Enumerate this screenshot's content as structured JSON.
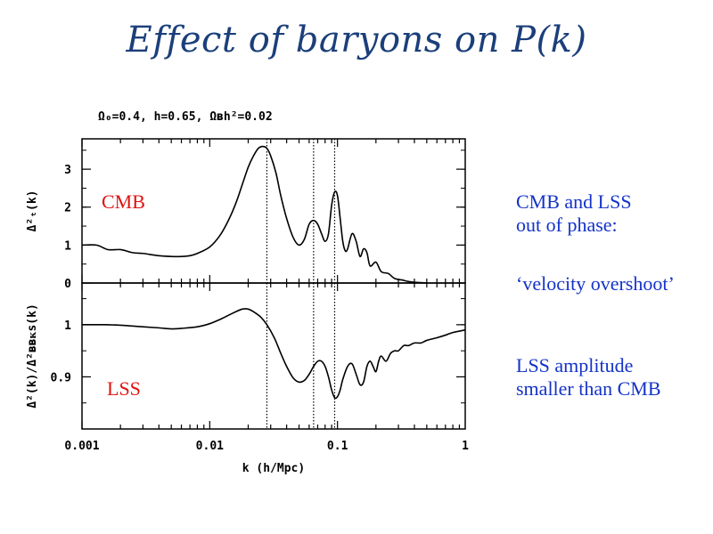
{
  "slide": {
    "title": "Effect of baryons on P(k)",
    "notes": [
      "CMB and LSS\nout of phase:",
      "‘velocity overshoot’",
      "LSS amplitude\nsmaller than CMB"
    ]
  },
  "chart_data": {
    "type": "line",
    "title": "Ω₀=0.4, h=0.65, Ωʙh²=0.02",
    "xlabel": "k (h/Mpc)",
    "x_scale": "log",
    "xlim": [
      0.001,
      1
    ],
    "x_ticks": [
      "0.001",
      "0.01",
      "0.1",
      "1"
    ],
    "vlines": [
      0.028,
      0.065,
      0.095
    ],
    "panels": [
      {
        "label": "CMB",
        "ylabel": "Δ²ₜ(k)",
        "ylim": [
          0,
          3.8
        ],
        "y_ticks": [
          "0",
          "1",
          "2",
          "3"
        ],
        "series": [
          {
            "x": [
              0.001,
              0.0013,
              0.0016,
              0.002,
              0.0025,
              0.003,
              0.004,
              0.005,
              0.006,
              0.007,
              0.008,
              0.01,
              0.012,
              0.014,
              0.016,
              0.018,
              0.02,
              0.022,
              0.024,
              0.026,
              0.028,
              0.03,
              0.033,
              0.036,
              0.04,
              0.045,
              0.05,
              0.055,
              0.06,
              0.065,
              0.07,
              0.075,
              0.08,
              0.085,
              0.09,
              0.095,
              0.1,
              0.105,
              0.11,
              0.115,
              0.12,
              0.13,
              0.14,
              0.15,
              0.16,
              0.17,
              0.18,
              0.2,
              0.22,
              0.25,
              0.28,
              0.32,
              0.36,
              0.4,
              0.45,
              0.5
            ],
            "y": [
              1.0,
              1.0,
              0.88,
              0.88,
              0.8,
              0.78,
              0.72,
              0.7,
              0.7,
              0.72,
              0.78,
              0.95,
              1.25,
              1.65,
              2.1,
              2.6,
              3.05,
              3.35,
              3.55,
              3.6,
              3.55,
              3.35,
              2.9,
              2.3,
              1.7,
              1.2,
              1.0,
              1.15,
              1.55,
              1.65,
              1.55,
              1.3,
              1.1,
              1.3,
              2.05,
              2.4,
              2.3,
              1.7,
              1.1,
              0.85,
              0.9,
              1.3,
              1.1,
              0.7,
              0.9,
              0.8,
              0.45,
              0.55,
              0.3,
              0.25,
              0.12,
              0.08,
              0.04,
              0.02,
              0.01,
              0.0
            ]
          }
        ]
      },
      {
        "label": "LSS",
        "ylabel": "Δ²(k)/Δ²ʙʙᴋѕ(k)",
        "ylim": [
          0.8,
          1.08
        ],
        "y_ticks": [
          "0.9",
          "1"
        ],
        "series": [
          {
            "x": [
              0.001,
              0.0015,
              0.002,
              0.003,
              0.004,
              0.005,
              0.006,
              0.008,
              0.01,
              0.012,
              0.014,
              0.016,
              0.018,
              0.02,
              0.022,
              0.025,
              0.028,
              0.032,
              0.036,
              0.04,
              0.045,
              0.05,
              0.055,
              0.06,
              0.065,
              0.07,
              0.075,
              0.08,
              0.085,
              0.09,
              0.095,
              0.1,
              0.105,
              0.11,
              0.12,
              0.13,
              0.14,
              0.15,
              0.16,
              0.17,
              0.18,
              0.19,
              0.2,
              0.21,
              0.22,
              0.24,
              0.26,
              0.28,
              0.3,
              0.33,
              0.36,
              0.4,
              0.45,
              0.5,
              0.6,
              0.7,
              0.8,
              1.0
            ],
            "y": [
              1.0,
              1.0,
              0.999,
              0.996,
              0.994,
              0.992,
              0.993,
              0.996,
              1.002,
              1.01,
              1.018,
              1.025,
              1.03,
              1.03,
              1.025,
              1.015,
              1.0,
              0.975,
              0.945,
              0.92,
              0.898,
              0.89,
              0.893,
              0.905,
              0.92,
              0.93,
              0.93,
              0.92,
              0.9,
              0.875,
              0.86,
              0.862,
              0.875,
              0.895,
              0.92,
              0.925,
              0.905,
              0.885,
              0.89,
              0.92,
              0.93,
              0.92,
              0.91,
              0.93,
              0.94,
              0.93,
              0.945,
              0.95,
              0.95,
              0.96,
              0.96,
              0.965,
              0.965,
              0.97,
              0.975,
              0.98,
              0.985,
              0.99
            ]
          }
        ]
      }
    ]
  }
}
